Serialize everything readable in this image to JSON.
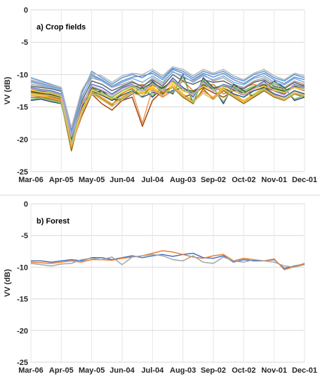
{
  "chart_data": [
    {
      "type": "line",
      "title": "a) Crop fields",
      "ylabel": "VV (dB)",
      "xlabel": "",
      "x_tick_labels": [
        "Mar-06",
        "Apr-05",
        "May-05",
        "Jun-04",
        "Jul-04",
        "Aug-03",
        "Sep-02",
        "Oct-02",
        "Nov-01",
        "Dec-01"
      ],
      "x_range": [
        0,
        27
      ],
      "ylim": [
        -25,
        0
      ],
      "y_ticks": [
        -25,
        -20,
        -15,
        -10,
        -5,
        0
      ],
      "grid": true,
      "legend": "none",
      "colors": [
        "#4472c4",
        "#ed7d31",
        "#a5a5a5",
        "#ffc000",
        "#5b9bd5",
        "#70ad47",
        "#264478",
        "#9e480e",
        "#636363",
        "#997300",
        "#255e91",
        "#43682b",
        "#698ed0",
        "#f1975a",
        "#b7b7b7",
        "#ffcd33",
        "#7cafdd",
        "#8cc168",
        "#c9a0dc",
        "#d4c06a"
      ],
      "series": [
        {
          "values": [
            -12.0,
            -12.3,
            -12.5,
            -13.0,
            -19.5,
            -15.0,
            -11.5,
            -12.0,
            -13.0,
            -12.0,
            -11.5,
            -13.0,
            -11.0,
            -12.5,
            -10.5,
            -12.0,
            -13.5,
            -11.0,
            -12.5,
            -11.5,
            -12.0,
            -13.0,
            -12.0,
            -11.0,
            -12.5,
            -13.0,
            -11.5,
            -12.0
          ]
        },
        {
          "values": [
            -12.5,
            -12.8,
            -13.2,
            -13.5,
            -20.5,
            -14.5,
            -12.0,
            -13.0,
            -14.0,
            -13.0,
            -12.0,
            -11.5,
            -12.5,
            -13.5,
            -12.5,
            -11.0,
            -12.5,
            -12.0,
            -11.5,
            -13.0,
            -12.5,
            -12.0,
            -11.5,
            -12.0,
            -11.0,
            -12.5,
            -12.0,
            -11.5
          ]
        },
        {
          "values": [
            -11.5,
            -11.8,
            -12.0,
            -12.4,
            -19.0,
            -13.5,
            -10.5,
            -11.0,
            -12.0,
            -11.5,
            -11.0,
            -12.0,
            -10.5,
            -11.5,
            -9.5,
            -10.5,
            -11.0,
            -10.0,
            -11.0,
            -10.5,
            -11.5,
            -12.0,
            -11.0,
            -10.5,
            -11.5,
            -12.0,
            -11.0,
            -11.5
          ]
        },
        {
          "values": [
            -13.0,
            -13.2,
            -13.5,
            -14.0,
            -21.5,
            -16.0,
            -12.5,
            -13.5,
            -14.5,
            -13.5,
            -12.5,
            -13.0,
            -12.0,
            -13.0,
            -11.5,
            -13.0,
            -14.0,
            -12.5,
            -13.5,
            -12.0,
            -13.0,
            -14.0,
            -13.0,
            -12.0,
            -13.0,
            -13.5,
            -12.5,
            -13.0
          ]
        },
        {
          "values": [
            -10.5,
            -11.0,
            -11.5,
            -12.0,
            -18.5,
            -13.0,
            -9.5,
            -10.5,
            -11.5,
            -10.5,
            -10.0,
            -10.5,
            -9.5,
            -10.5,
            -9.0,
            -9.5,
            -10.5,
            -9.5,
            -10.0,
            -9.5,
            -10.5,
            -11.0,
            -10.0,
            -9.5,
            -10.5,
            -11.0,
            -10.0,
            -10.5
          ]
        },
        {
          "values": [
            -12.2,
            -12.6,
            -12.8,
            -13.3,
            -20.0,
            -15.5,
            -12.2,
            -12.8,
            -13.5,
            -12.5,
            -11.8,
            -12.5,
            -11.5,
            -12.0,
            -11.0,
            -12.5,
            -12.8,
            -11.5,
            -12.0,
            -11.8,
            -12.2,
            -12.5,
            -11.8,
            -11.5,
            -12.0,
            -12.5,
            -11.8,
            -12.0
          ]
        },
        {
          "values": [
            -14.0,
            -13.8,
            -14.2,
            -14.5,
            -20.8,
            -14.8,
            -13.0,
            -12.5,
            -13.8,
            -14.0,
            -13.0,
            -12.0,
            -13.5,
            -12.0,
            -13.0,
            -10.0,
            -14.5,
            -10.5,
            -12.0,
            -14.5,
            -11.5,
            -12.5,
            -13.5,
            -12.5,
            -11.0,
            -12.0,
            -14.0,
            -13.5
          ]
        },
        {
          "values": [
            -12.8,
            -13.0,
            -13.4,
            -13.8,
            -21.0,
            -16.5,
            -13.0,
            -14.5,
            -15.5,
            -14.0,
            -13.5,
            -18.0,
            -14.0,
            -12.5,
            -12.0,
            -13.5,
            -13.0,
            -12.0,
            -12.8,
            -13.5,
            -12.5,
            -13.2,
            -12.5,
            -12.0,
            -12.5,
            -12.8,
            -12.0,
            -12.5
          ]
        },
        {
          "values": [
            -11.8,
            -12.0,
            -12.2,
            -12.6,
            -19.8,
            -14.2,
            -11.0,
            -11.5,
            -12.5,
            -11.8,
            -11.2,
            -11.8,
            -10.8,
            -11.8,
            -10.0,
            -11.0,
            -11.5,
            -10.8,
            -11.2,
            -11.0,
            -11.8,
            -12.2,
            -11.2,
            -10.8,
            -11.8,
            -12.2,
            -11.2,
            -11.8
          ]
        },
        {
          "values": [
            -13.5,
            -13.5,
            -13.8,
            -14.2,
            -21.8,
            -15.2,
            -12.8,
            -13.8,
            -14.8,
            -12.8,
            -12.2,
            -13.5,
            -11.5,
            -12.8,
            -12.0,
            -13.5,
            -14.5,
            -12.2,
            -13.8,
            -12.5,
            -13.5,
            -14.5,
            -13.5,
            -12.5,
            -13.5,
            -14.0,
            -13.0,
            -13.5
          ]
        },
        {
          "values": [
            -12.0,
            -12.5,
            -13.0,
            -13.5,
            -20.2,
            -15.0,
            -12.5,
            -13.2,
            -14.0,
            -13.2,
            -12.5,
            -13.5,
            -12.8,
            -13.0,
            -12.5,
            -12.0,
            -13.0,
            -11.2,
            -12.5,
            -12.0,
            -13.0,
            -13.5,
            -12.5,
            -12.0,
            -13.0,
            -13.5,
            -12.5,
            -13.0
          ]
        },
        {
          "values": [
            -12.6,
            -12.9,
            -13.1,
            -13.6,
            -20.4,
            -15.8,
            -12.0,
            -12.5,
            -13.2,
            -12.2,
            -11.6,
            -12.2,
            -11.2,
            -12.2,
            -10.8,
            -12.2,
            -12.6,
            -11.6,
            -12.2,
            -11.6,
            -12.4,
            -12.8,
            -12.0,
            -11.6,
            -12.2,
            -12.6,
            -11.8,
            -12.2
          ]
        },
        {
          "values": [
            -11.0,
            -11.4,
            -11.8,
            -12.2,
            -18.8,
            -12.8,
            -10.0,
            -10.8,
            -11.8,
            -11.0,
            -10.4,
            -10.2,
            -9.8,
            -10.8,
            -9.2,
            -9.8,
            -10.8,
            -9.8,
            -10.4,
            -9.8,
            -10.8,
            -11.4,
            -10.4,
            -9.8,
            -10.8,
            -11.4,
            -10.4,
            -10.8
          ]
        },
        {
          "values": [
            -13.2,
            -13.4,
            -13.6,
            -14.0,
            -21.2,
            -16.2,
            -12.6,
            -13.6,
            -14.6,
            -13.6,
            -12.6,
            -17.5,
            -12.2,
            -13.2,
            -11.8,
            -13.2,
            -14.2,
            -12.6,
            -13.6,
            -12.2,
            -13.2,
            -14.2,
            -13.2,
            -12.2,
            -13.2,
            -13.8,
            -12.8,
            -13.2
          ]
        },
        {
          "values": [
            -10.8,
            -11.2,
            -11.6,
            -12.0,
            -18.2,
            -12.5,
            -9.8,
            -10.2,
            -11.2,
            -10.2,
            -9.8,
            -10.0,
            -9.2,
            -10.2,
            -8.8,
            -9.2,
            -10.2,
            -9.2,
            -9.8,
            -9.2,
            -10.2,
            -10.8,
            -9.8,
            -9.2,
            -10.2,
            -10.8,
            -9.8,
            -10.2
          ]
        },
        {
          "values": [
            -12.4,
            -12.7,
            -12.9,
            -13.4,
            -20.6,
            -15.6,
            -12.4,
            -13.0,
            -13.8,
            -12.8,
            -12.0,
            -12.8,
            -11.8,
            -12.4,
            -11.2,
            -12.6,
            -13.0,
            -11.8,
            -12.4,
            -12.0,
            -12.6,
            -13.0,
            -12.2,
            -11.8,
            -12.4,
            -12.8,
            -12.0,
            -12.4
          ]
        },
        {
          "values": [
            -11.2,
            -11.6,
            -12.0,
            -12.4,
            -19.2,
            -13.8,
            -10.2,
            -11.0,
            -12.0,
            -11.2,
            -10.6,
            -11.2,
            -10.2,
            -11.2,
            -9.6,
            -10.2,
            -11.2,
            -10.2,
            -10.8,
            -10.2,
            -11.2,
            -11.6,
            -10.6,
            -10.2,
            -11.2,
            -11.6,
            -10.6,
            -11.2
          ]
        },
        {
          "values": [
            -13.8,
            -13.6,
            -14.0,
            -14.4,
            -20.6,
            -14.6,
            -13.2,
            -12.8,
            -13.6,
            -13.8,
            -12.8,
            -12.2,
            -13.2,
            -12.2,
            -12.8,
            -10.4,
            -14.2,
            -10.8,
            -12.2,
            -14.2,
            -11.8,
            -12.8,
            -13.2,
            -12.2,
            -11.2,
            -12.2,
            -13.8,
            -13.2
          ]
        },
        {
          "values": [
            -12.1,
            -12.4,
            -12.7,
            -13.1,
            -19.6,
            -14.8,
            -11.8,
            -12.4,
            -13.2,
            -12.2,
            -11.6,
            -12.6,
            -11.4,
            -12.6,
            -10.8,
            -12.2,
            -13.2,
            -11.2,
            -12.6,
            -11.6,
            -12.2,
            -13.2,
            -12.2,
            -11.2,
            -12.6,
            -13.2,
            -11.6,
            -12.2
          ]
        },
        {
          "values": [
            -12.9,
            -13.1,
            -13.3,
            -13.7,
            -20.9,
            -16.0,
            -12.9,
            -13.9,
            -14.9,
            -13.9,
            -12.9,
            -13.3,
            -12.3,
            -13.3,
            -11.9,
            -13.3,
            -14.3,
            -12.9,
            -13.9,
            -12.3,
            -13.3,
            -14.3,
            -13.3,
            -12.3,
            -13.3,
            -13.9,
            -12.9,
            -13.3
          ]
        }
      ]
    },
    {
      "type": "line",
      "title": "b) Forest",
      "ylabel": "VV (dB)",
      "xlabel": "",
      "x_tick_labels": [
        "Mar-06",
        "Apr-05",
        "May-05",
        "Jun-04",
        "Jul-04",
        "Aug-03",
        "Sep-02",
        "Oct-02",
        "Nov-01",
        "Dec-01"
      ],
      "x_range": [
        0,
        27
      ],
      "ylim": [
        -25,
        0
      ],
      "y_ticks": [
        -25,
        -20,
        -15,
        -10,
        -5,
        0
      ],
      "grid": true,
      "legend": "none",
      "colors": [
        "#4472c4",
        "#ed7d31",
        "#a5a5a5",
        "#ffc000"
      ],
      "series": [
        {
          "values": [
            -9.0,
            -9.0,
            -9.2,
            -9.0,
            -8.8,
            -9.0,
            -8.5,
            -8.5,
            -8.8,
            -8.5,
            -8.2,
            -8.5,
            -8.2,
            -8.0,
            -8.3,
            -8.0,
            -7.8,
            -8.5,
            -8.6,
            -8.2,
            -9.2,
            -8.8,
            -9.0,
            -9.0,
            -8.8,
            -10.2,
            -9.8,
            -9.5
          ]
        },
        {
          "values": [
            -9.2,
            -9.3,
            -9.4,
            -9.2,
            -9.0,
            -9.2,
            -8.8,
            -8.8,
            -8.9,
            -8.6,
            -8.4,
            -8.2,
            -7.8,
            -7.4,
            -7.6,
            -8.0,
            -8.4,
            -8.6,
            -8.2,
            -8.0,
            -9.0,
            -8.6,
            -8.8,
            -9.0,
            -8.7,
            -10.4,
            -9.9,
            -9.4
          ]
        },
        {
          "values": [
            -9.4,
            -9.6,
            -9.8,
            -9.5,
            -9.4,
            -8.8,
            -8.6,
            -8.8,
            -8.4,
            -9.6,
            -8.4,
            -8.2,
            -8.0,
            -8.2,
            -8.8,
            -9.0,
            -8.2,
            -9.2,
            -9.4,
            -8.4,
            -9.0,
            -9.2,
            -8.8,
            -9.0,
            -9.2,
            -9.8,
            -10.0,
            -9.6
          ]
        }
      ]
    }
  ]
}
